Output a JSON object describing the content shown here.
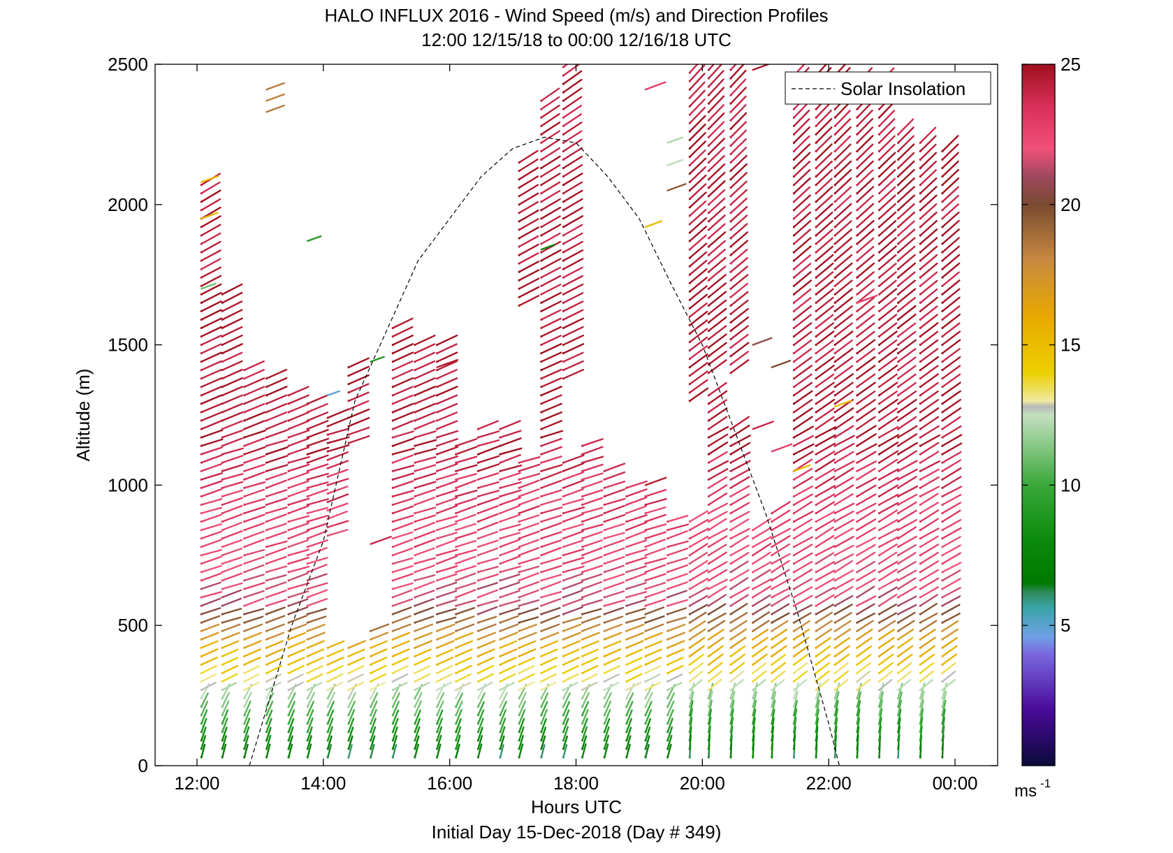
{
  "chart_data": {
    "type": "scatter",
    "subtype": "wind-barb profile",
    "title": "HALO INFLUX 2016 - Wind Speed (m/s) and Direction Profiles",
    "subtitle": "12:00 12/15/18 to 00:00 12/16/18  UTC",
    "xlabel": "Hours UTC",
    "xlabel2": "Initial Day 15-Dec-2018 (Day # 349)",
    "ylabel": "Altitude (m)",
    "xlim": [
      12,
      24
    ],
    "ylim": [
      0,
      2500
    ],
    "x_ticks": [
      12,
      14,
      16,
      18,
      20,
      22,
      24
    ],
    "x_tick_labels": [
      "12:00",
      "14:00",
      "16:00",
      "18:00",
      "20:00",
      "22:00",
      "00:00"
    ],
    "y_ticks": [
      0,
      500,
      1000,
      1500,
      2000,
      2500
    ],
    "y_tick_labels": [
      "0",
      "500",
      "1000",
      "1500",
      "2000",
      "2500"
    ],
    "grid": false,
    "legend": {
      "position": "top-right",
      "entries": [
        {
          "label": "Solar Insolation",
          "style": "dashed",
          "color": "#000000"
        }
      ]
    },
    "colorbar": {
      "label": "ms-1",
      "range": [
        0,
        25
      ],
      "ticks": [
        5,
        10,
        15,
        20,
        25
      ],
      "tick_labels": [
        "5",
        "10",
        "15",
        "20",
        "25"
      ],
      "colors": [
        {
          "v": 0,
          "c": "#0c0a3a"
        },
        {
          "v": 2,
          "c": "#4a0a9a"
        },
        {
          "v": 4,
          "c": "#7a6ae0"
        },
        {
          "v": 4.6,
          "c": "#6fa0e6"
        },
        {
          "v": 5.6,
          "c": "#3aa4a8"
        },
        {
          "v": 6.2,
          "c": "#2e8a5a"
        },
        {
          "v": 6.5,
          "c": "#007a00"
        },
        {
          "v": 8,
          "c": "#0a8a0a"
        },
        {
          "v": 10,
          "c": "#3aa83a"
        },
        {
          "v": 12.5,
          "c": "#c4e0c0"
        },
        {
          "v": 12.8,
          "c": "#b8b8b8"
        },
        {
          "v": 13,
          "c": "#f0e8a0"
        },
        {
          "v": 14,
          "c": "#ecd000"
        },
        {
          "v": 16,
          "c": "#e8a800"
        },
        {
          "v": 18,
          "c": "#c88a40"
        },
        {
          "v": 20,
          "c": "#7a4a30"
        },
        {
          "v": 21,
          "c": "#a04860"
        },
        {
          "v": 22,
          "c": "#f0507a"
        },
        {
          "v": 23.5,
          "c": "#d8305a"
        },
        {
          "v": 25,
          "c": "#a0101e"
        }
      ]
    },
    "solar_insolation": {
      "x": [
        12.83,
        13.5,
        14.0,
        14.5,
        15.0,
        15.5,
        16.0,
        16.5,
        17.0,
        17.5,
        18.0,
        18.5,
        19.0,
        19.5,
        20.0,
        20.5,
        21.0,
        21.5,
        22.0,
        22.17
      ],
      "y": [
        0,
        500,
        800,
        1300,
        1550,
        1800,
        1950,
        2100,
        2200,
        2240,
        2220,
        2100,
        1950,
        1720,
        1500,
        1200,
        900,
        550,
        150,
        0
      ]
    },
    "profiles": [
      {
        "t": 12.07,
        "segments": [
          {
            "z0": 30,
            "z1": 2080,
            "tail": 13
          }
        ],
        "extra": [
          {
            "z": 2080,
            "s": 15.5
          },
          {
            "z": 1950,
            "s": 15.2
          },
          {
            "z": 1700,
            "s": 11
          }
        ]
      },
      {
        "t": 12.4,
        "segments": [
          {
            "z0": 30,
            "z1": 1680,
            "tail": 13
          }
        ]
      },
      {
        "t": 12.75,
        "segments": [
          {
            "z0": 30,
            "z1": 1420,
            "tail": 12
          }
        ]
      },
      {
        "t": 13.1,
        "segments": [
          {
            "z0": 30,
            "z1": 1380,
            "tail": 12
          }
        ],
        "extra": [
          {
            "z": 2410,
            "s": 18.5
          },
          {
            "z": 2370,
            "s": 18.3
          },
          {
            "z": 2330,
            "s": 18.6
          }
        ]
      },
      {
        "t": 13.45,
        "segments": [
          {
            "z0": 30,
            "z1": 1330,
            "tail": 12
          }
        ]
      },
      {
        "t": 13.75,
        "segments": [
          {
            "z0": 30,
            "z1": 1300,
            "tail": 12
          }
        ],
        "extra": [
          {
            "z": 1870,
            "s": 9
          }
        ]
      },
      {
        "t": 14.07,
        "segments": [
          {
            "z0": 30,
            "z1": 440,
            "tail": 11
          },
          {
            "z0": 820,
            "z1": 1260,
            "tail": 12
          }
        ],
        "extra": [
          {
            "z": 1320,
            "s": 5
          }
        ]
      },
      {
        "t": 14.4,
        "segments": [
          {
            "z0": 30,
            "z1": 440,
            "tail": 11
          },
          {
            "z0": 1150,
            "z1": 1420,
            "tail": 12
          }
        ]
      },
      {
        "t": 14.75,
        "segments": [
          {
            "z0": 30,
            "z1": 500,
            "tail": 11
          }
        ],
        "extra": [
          {
            "z": 1440,
            "s": 9
          },
          {
            "z": 790,
            "s": 24
          }
        ]
      },
      {
        "t": 15.1,
        "segments": [
          {
            "z0": 30,
            "z1": 1580,
            "tail": 12
          }
        ]
      },
      {
        "t": 15.45,
        "segments": [
          {
            "z0": 30,
            "z1": 1500,
            "tail": 12
          }
        ]
      },
      {
        "t": 15.8,
        "segments": [
          {
            "z0": 30,
            "z1": 1500,
            "tail": 12
          }
        ],
        "extra": [
          {
            "z": 1420,
            "s": 24.5
          }
        ]
      },
      {
        "t": 16.1,
        "segments": [
          {
            "z0": 30,
            "z1": 1160,
            "tail": 12
          }
        ]
      },
      {
        "t": 16.45,
        "segments": [
          {
            "z0": 30,
            "z1": 1200,
            "tail": 12
          }
        ]
      },
      {
        "t": 16.8,
        "segments": [
          {
            "z0": 30,
            "z1": 1200,
            "tail": 12
          }
        ]
      },
      {
        "t": 17.1,
        "segments": [
          {
            "z0": 30,
            "z1": 1080,
            "tail": 12
          },
          {
            "z0": 1640,
            "z1": 2160,
            "tail": 13
          }
        ]
      },
      {
        "t": 17.45,
        "segments": [
          {
            "z0": 30,
            "z1": 2380,
            "tail": 13
          }
        ],
        "extra": [
          {
            "z": 1840,
            "s": 8
          }
        ]
      },
      {
        "t": 17.8,
        "segments": [
          {
            "z0": 30,
            "z1": 1100,
            "tail": 12
          },
          {
            "z0": 1380,
            "z1": 2500,
            "tail": 13
          }
        ]
      },
      {
        "t": 18.1,
        "segments": [
          {
            "z0": 30,
            "z1": 1160,
            "tail": 12
          }
        ]
      },
      {
        "t": 18.45,
        "segments": [
          {
            "z0": 30,
            "z1": 1060,
            "tail": 12
          }
        ]
      },
      {
        "t": 18.8,
        "segments": [
          {
            "z0": 30,
            "z1": 1000,
            "tail": 12
          }
        ]
      },
      {
        "t": 19.1,
        "segments": [
          {
            "z0": 30,
            "z1": 960,
            "tail": 12
          }
        ],
        "extra": [
          {
            "z": 2410,
            "s": 23
          },
          {
            "z": 1920,
            "s": 15
          },
          {
            "z": 1000,
            "s": 24.5
          }
        ]
      },
      {
        "t": 19.45,
        "segments": [
          {
            "z0": 30,
            "z1": 880,
            "tail": 12
          }
        ],
        "extra": [
          {
            "z": 2220,
            "s": 12
          },
          {
            "z": 2140,
            "s": 12.3
          },
          {
            "z": 2050,
            "s": 19.5
          }
        ]
      },
      {
        "t": 19.8,
        "segments": [
          {
            "z0": 30,
            "z1": 880,
            "tail": 12
          },
          {
            "z0": 1300,
            "z1": 2480,
            "tail": 13
          }
        ]
      },
      {
        "t": 20.1,
        "segments": [
          {
            "z0": 30,
            "z1": 1340,
            "tail": 12
          },
          {
            "z0": 1400,
            "z1": 2480,
            "tail": 13
          }
        ]
      },
      {
        "t": 20.45,
        "segments": [
          {
            "z0": 30,
            "z1": 1200,
            "tail": 12
          },
          {
            "z0": 1400,
            "z1": 2480,
            "tail": 13
          }
        ]
      },
      {
        "t": 20.8,
        "segments": [
          {
            "z0": 30,
            "z1": 860,
            "tail": 12
          }
        ],
        "extra": [
          {
            "z": 1200,
            "s": 24
          },
          {
            "z": 1500,
            "s": 20.5
          },
          {
            "z": 2480,
            "s": 24.8
          }
        ]
      },
      {
        "t": 21.1,
        "segments": [
          {
            "z0": 30,
            "z1": 900,
            "tail": 12
          }
        ],
        "extra": [
          {
            "z": 1120,
            "s": 23
          },
          {
            "z": 1420,
            "s": 20
          }
        ]
      },
      {
        "t": 21.45,
        "segments": [
          {
            "z0": 30,
            "z1": 2460,
            "tail": 13
          }
        ],
        "extra": [
          {
            "z": 1050,
            "s": 15
          }
        ]
      },
      {
        "t": 21.8,
        "segments": [
          {
            "z0": 30,
            "z1": 2460,
            "tail": 13
          }
        ]
      },
      {
        "t": 22.1,
        "segments": [
          {
            "z0": 30,
            "z1": 2460,
            "tail": 13
          }
        ],
        "extra": [
          {
            "z": 1280,
            "s": 15
          }
        ]
      },
      {
        "t": 22.45,
        "segments": [
          {
            "z0": 30,
            "z1": 2440,
            "tail": 13
          }
        ],
        "extra": [
          {
            "z": 1650,
            "s": 23
          }
        ]
      },
      {
        "t": 22.8,
        "segments": [
          {
            "z0": 30,
            "z1": 2440,
            "tail": 13
          }
        ]
      },
      {
        "t": 23.1,
        "segments": [
          {
            "z0": 30,
            "z1": 2260,
            "tail": 13
          }
        ]
      },
      {
        "t": 23.45,
        "segments": [
          {
            "z0": 30,
            "z1": 2230,
            "tail": 13
          }
        ]
      },
      {
        "t": 23.8,
        "segments": [
          {
            "z0": 30,
            "z1": 2200,
            "tail": 13
          }
        ]
      }
    ]
  }
}
